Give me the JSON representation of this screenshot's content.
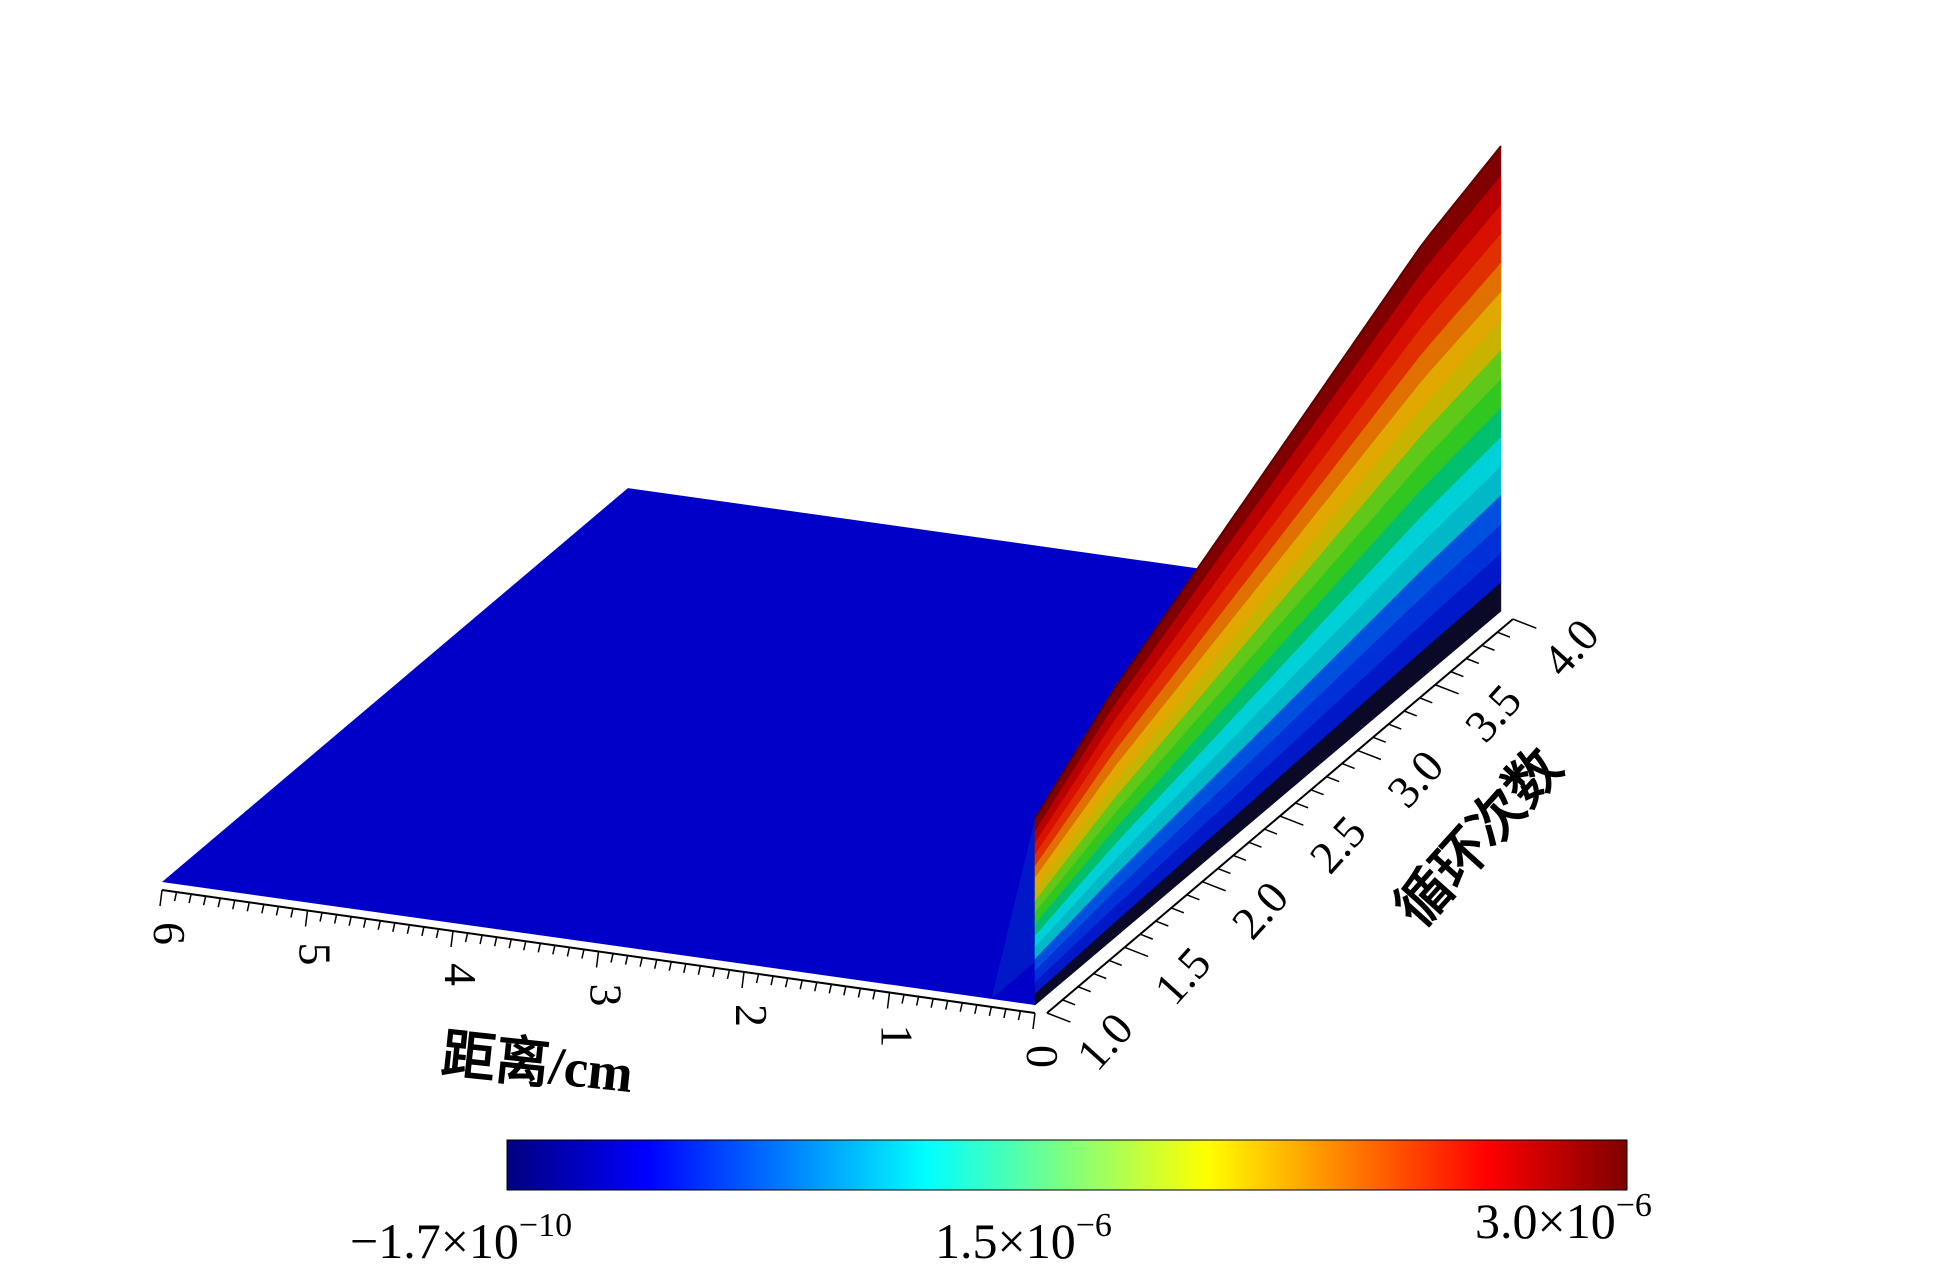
{
  "chart_data": {
    "type": "surface",
    "xlabel": "距离/cm",
    "ylabel": "循环次数",
    "x_ticks": [
      "0",
      "1",
      "2",
      "3",
      "4",
      "5",
      "6"
    ],
    "x_values": [
      0,
      1,
      2,
      3,
      4,
      5,
      6
    ],
    "y_ticks": [
      "1.0",
      "1.5",
      "2.0",
      "2.5",
      "3.0",
      "3.5",
      "4.0"
    ],
    "y_values": [
      1.0,
      1.5,
      2.0,
      2.5,
      3.0,
      3.5,
      4.0
    ],
    "xlim": [
      0,
      6
    ],
    "ylim": [
      1.0,
      4.0
    ],
    "zlim": [
      -1.7e-10,
      3e-06
    ],
    "peak_profile": {
      "y": [
        1.0,
        1.5,
        2.0,
        2.5,
        3.0,
        3.5,
        4.0
      ],
      "z_at_x0": [
        1.2e-06,
        1.6e-06,
        1.9e-06,
        2.2e-06,
        2.5e-06,
        2.8e-06,
        3e-06
      ],
      "decay_to_zero_by_x": 0.3
    },
    "colorbar": {
      "min_label": {
        "mantissa": "−1.7×10",
        "exponent": "−10"
      },
      "mid_label": {
        "mantissa": "1.5×10",
        "exponent": "−6"
      },
      "max_label": {
        "mantissa": "3.0×10",
        "exponent": "−6"
      },
      "colors": [
        "#00007f",
        "#0000ff",
        "#007fff",
        "#00ffff",
        "#7fff7f",
        "#ffff00",
        "#ff7f00",
        "#ff0000",
        "#7f0000"
      ]
    },
    "band_colors": [
      "#0a0a28",
      "#0018c8",
      "#0030d8",
      "#0050e0",
      "#00b8c8",
      "#00d0d8",
      "#00c070",
      "#30c820",
      "#60c818",
      "#c8b400",
      "#e0a800",
      "#e07000",
      "#e03000",
      "#d81000",
      "#b80000",
      "#800000"
    ],
    "surface_color": "#0000c8"
  }
}
